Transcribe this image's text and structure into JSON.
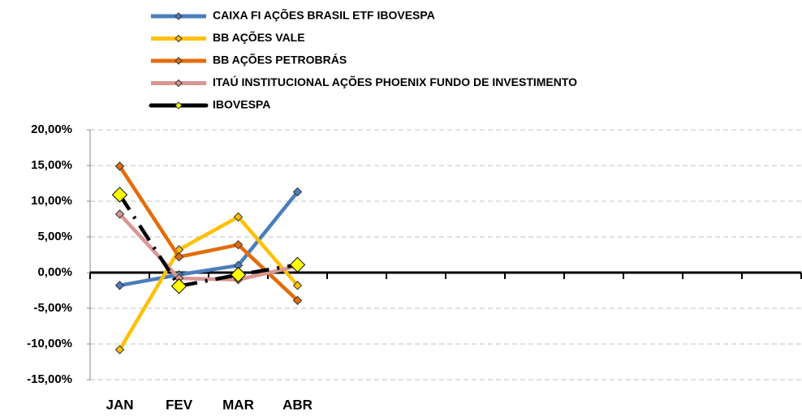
{
  "chart_data": {
    "type": "line",
    "categories": [
      "JAN",
      "FEV",
      "MAR",
      "ABR",
      null,
      null,
      null,
      null,
      null,
      null,
      null,
      null
    ],
    "series": [
      {
        "name": "CAIXA FI AÇÕES BRASIL ETF IBOVESPA",
        "color": "#4a7ebb",
        "values": [
          -1.8,
          -0.3,
          1.0,
          11.3,
          null,
          null,
          null,
          null,
          null,
          null,
          null,
          null
        ]
      },
      {
        "name": "BB AÇÕES VALE",
        "color": "#ffc000",
        "values": [
          -10.8,
          3.2,
          7.8,
          -1.8,
          null,
          null,
          null,
          null,
          null,
          null,
          null,
          null
        ]
      },
      {
        "name": "BB AÇÕES PETROBRÁS",
        "color": "#e46c0a",
        "values": [
          14.9,
          2.2,
          3.9,
          -3.9,
          null,
          null,
          null,
          null,
          null,
          null,
          null,
          null
        ]
      },
      {
        "name": "ITAÚ INSTITUCIONAL AÇÕES PHOENIX FUNDO DE INVESTIMENTO",
        "color": "#d99694",
        "values": [
          8.2,
          -0.8,
          -1.0,
          0.9,
          null,
          null,
          null,
          null,
          null,
          null,
          null,
          null
        ]
      },
      {
        "name": "IBOVESPA",
        "color": "#000000",
        "values": [
          10.9,
          -1.9,
          -0.3,
          1.1,
          null,
          null,
          null,
          null,
          null,
          null,
          null,
          null
        ]
      }
    ],
    "ylim": [
      -15,
      20
    ],
    "yticks": [
      {
        "value": -15,
        "label": "-15,00%"
      },
      {
        "value": -10,
        "label": "-10,00%"
      },
      {
        "value": -5,
        "label": "-5,00%"
      },
      {
        "value": 0,
        "label": "0,00%"
      },
      {
        "value": 5,
        "label": "5,00%"
      },
      {
        "value": 10,
        "label": "10,00%"
      },
      {
        "value": 15,
        "label": "15,00%"
      },
      {
        "value": 20,
        "label": "20,00%"
      }
    ],
    "grid": true,
    "legend": "top"
  }
}
